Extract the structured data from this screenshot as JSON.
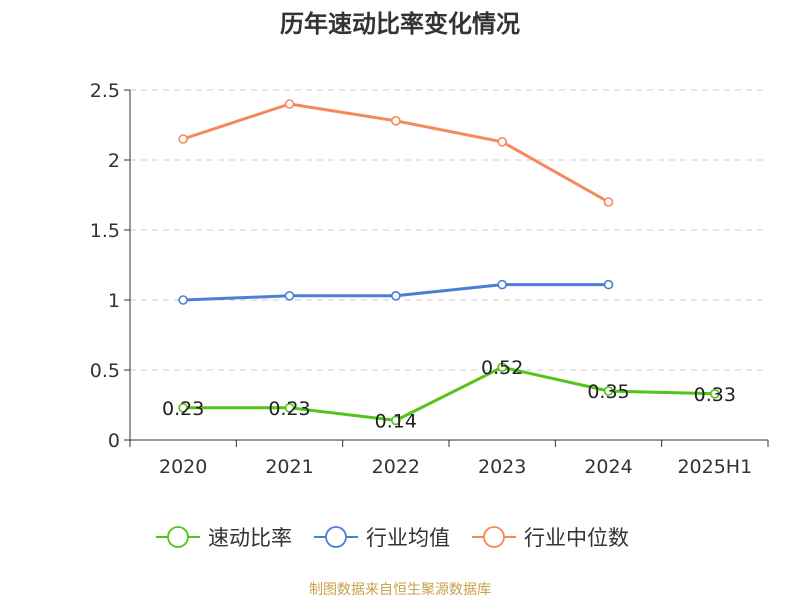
{
  "chart_data": {
    "type": "line",
    "title": "历年速动比率变化情况",
    "categories": [
      "2020",
      "2021",
      "2022",
      "2023",
      "2024",
      "2025H1"
    ],
    "ylim": [
      0,
      2.5
    ],
    "y_ticks": [
      "0",
      "0.5",
      "1",
      "1.5",
      "2",
      "2.5"
    ],
    "grid": true,
    "legend_position": "bottom",
    "series": [
      {
        "name": "速动比率",
        "color": "#52c41a",
        "values": [
          0.23,
          0.23,
          0.14,
          0.52,
          0.35,
          0.33
        ],
        "labels": [
          "0.23",
          "0.23",
          "0.14",
          "0.52",
          "0.35",
          "0.33"
        ]
      },
      {
        "name": "行业均值",
        "color": "#4a7fd6",
        "values": [
          1.0,
          1.03,
          1.03,
          1.11,
          1.11,
          null
        ]
      },
      {
        "name": "行业中位数",
        "color": "#f5895a",
        "values": [
          2.15,
          2.4,
          2.28,
          2.13,
          1.7,
          null
        ]
      }
    ]
  },
  "footer": {
    "source": "制图数据来自恒生聚源数据库"
  }
}
